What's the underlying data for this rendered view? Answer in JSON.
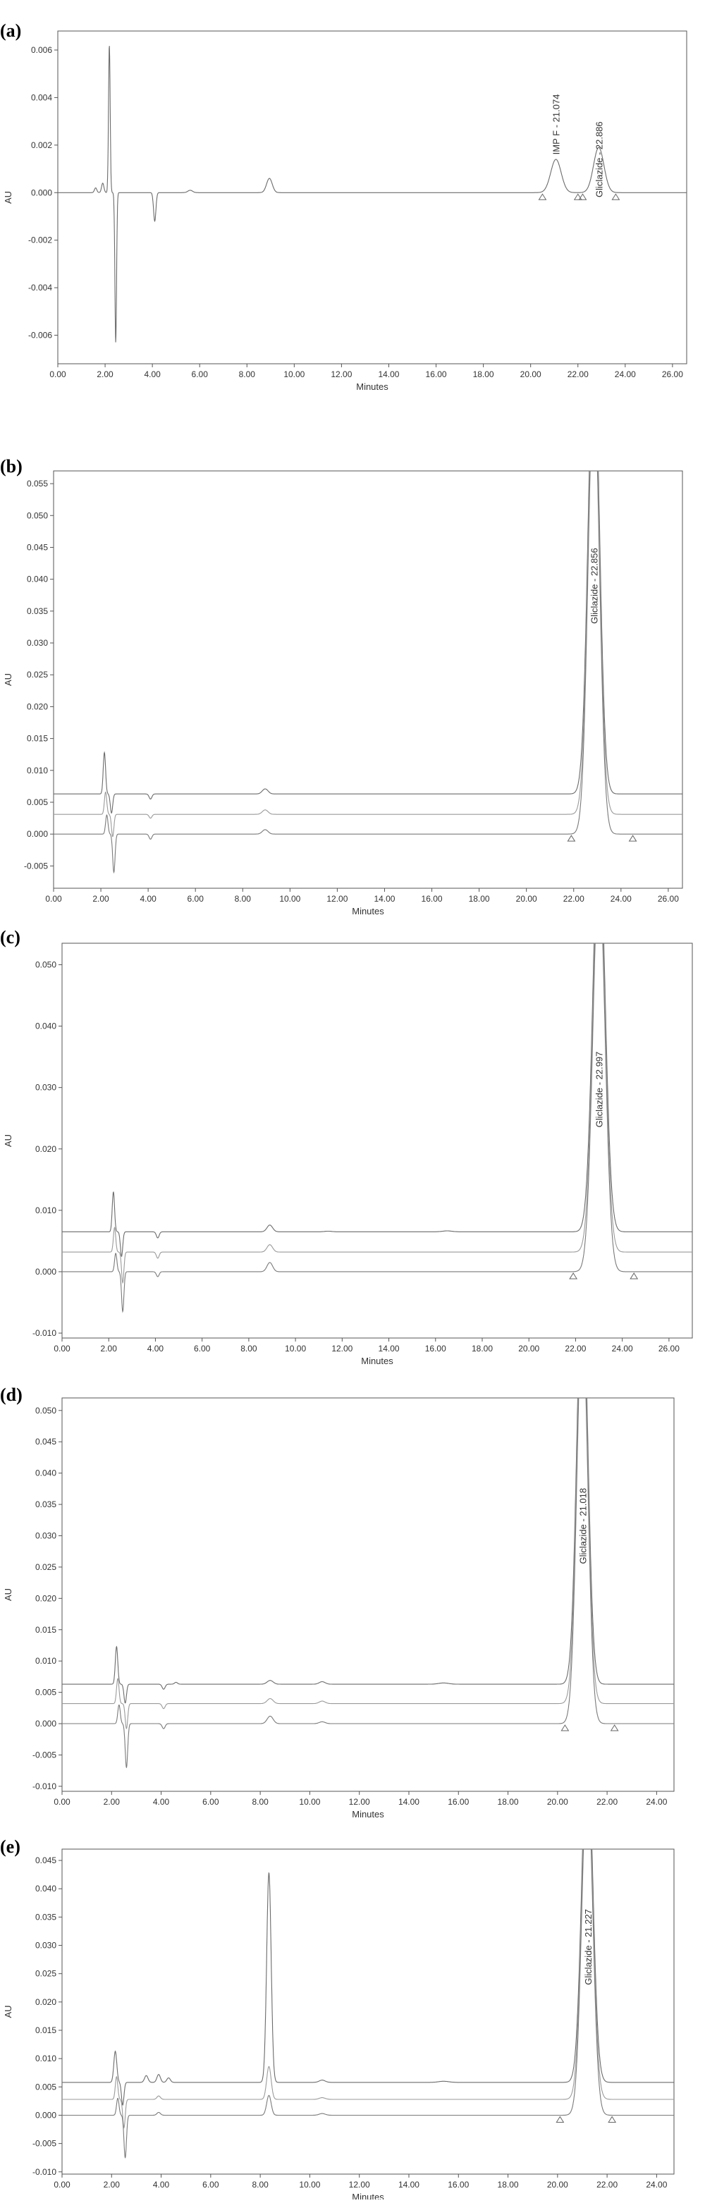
{
  "chart_data": [
    {
      "panel_label": "(a)",
      "type": "line",
      "xlabel": "Minutes",
      "ylabel": "AU",
      "xlim": [
        0,
        26.6
      ],
      "ylim": [
        -0.0072,
        0.0068
      ],
      "x_ticks": [
        "0.00",
        "2.00",
        "4.00",
        "6.00",
        "8.00",
        "10.00",
        "12.00",
        "14.00",
        "16.00",
        "18.00",
        "20.00",
        "22.00",
        "24.00",
        "26.00"
      ],
      "y_ticks": [
        {
          "value": 0.006,
          "label": "0.006"
        },
        {
          "value": 0.004,
          "label": "0.004"
        },
        {
          "value": 0.002,
          "label": "0.002"
        },
        {
          "value": 0.0,
          "label": "0.000"
        },
        {
          "value": -0.002,
          "label": "-0.002"
        },
        {
          "value": -0.004,
          "label": "-0.004"
        },
        {
          "value": -0.006,
          "label": "-0.006"
        }
      ],
      "series": [
        {
          "offset": 0.0,
          "features": [
            {
              "t": 1.6,
              "h": 0.0002,
              "w": 0.05
            },
            {
              "t": 1.9,
              "h": 0.0004,
              "w": 0.05
            },
            {
              "t": 2.18,
              "h": 0.0062,
              "w": 0.035
            },
            {
              "t": 2.45,
              "h": -0.0063,
              "w": 0.035
            },
            {
              "t": 4.1,
              "h": -0.0012,
              "w": 0.05
            },
            {
              "t": 5.6,
              "h": 0.0001,
              "w": 0.1
            },
            {
              "t": 8.95,
              "h": 0.0006,
              "w": 0.12
            },
            {
              "t": 21.07,
              "h": 0.0014,
              "w": 0.22
            },
            {
              "t": 22.88,
              "h": 0.0019,
              "w": 0.22
            }
          ]
        }
      ],
      "markers": [
        20.5,
        22.0,
        22.2,
        23.6
      ],
      "peak_labels": [
        {
          "text": "IMP F - 21.074",
          "t": 21.074,
          "value": 0.0016
        },
        {
          "text": "Gliclazide - 22.886",
          "t": 22.886,
          "value": -0.0002
        }
      ]
    },
    {
      "panel_label": "(b)",
      "type": "line",
      "xlabel": "Minutes",
      "ylabel": "AU",
      "xlim": [
        0,
        26.6
      ],
      "ylim": [
        -0.0085,
        0.057
      ],
      "x_ticks": [
        "0.00",
        "2.00",
        "4.00",
        "6.00",
        "8.00",
        "10.00",
        "12.00",
        "14.00",
        "16.00",
        "18.00",
        "20.00",
        "22.00",
        "24.00",
        "26.00"
      ],
      "y_ticks": [
        {
          "value": 0.055,
          "label": "0.055"
        },
        {
          "value": 0.05,
          "label": "0.050"
        },
        {
          "value": 0.045,
          "label": "0.045"
        },
        {
          "value": 0.04,
          "label": "0.040"
        },
        {
          "value": 0.035,
          "label": "0.035"
        },
        {
          "value": 0.03,
          "label": "0.030"
        },
        {
          "value": 0.025,
          "label": "0.025"
        },
        {
          "value": 0.02,
          "label": "0.020"
        },
        {
          "value": 0.015,
          "label": "0.015"
        },
        {
          "value": 0.01,
          "label": "0.010"
        },
        {
          "value": 0.005,
          "label": "0.005"
        },
        {
          "value": 0.0,
          "label": "0.000"
        },
        {
          "value": -0.005,
          "label": "-0.005"
        }
      ],
      "series": [
        {
          "offset": 0.0063,
          "features": [
            {
              "t": 2.15,
              "h": 0.0065,
              "w": 0.05
            },
            {
              "t": 2.45,
              "h": -0.003,
              "w": 0.05
            },
            {
              "t": 4.1,
              "h": -0.0008,
              "w": 0.06
            },
            {
              "t": 8.95,
              "h": 0.0008,
              "w": 0.12
            },
            {
              "t": 22.85,
              "h": 0.07,
              "w": 0.24
            }
          ]
        },
        {
          "offset": 0.0031,
          "features": [
            {
              "t": 2.2,
              "h": 0.0035,
              "w": 0.05
            },
            {
              "t": 2.5,
              "h": -0.0035,
              "w": 0.05
            },
            {
              "t": 4.1,
              "h": -0.0006,
              "w": 0.06
            },
            {
              "t": 8.95,
              "h": 0.0007,
              "w": 0.12
            },
            {
              "t": 22.85,
              "h": 0.07,
              "w": 0.24
            }
          ]
        },
        {
          "offset": 0.0,
          "features": [
            {
              "t": 2.25,
              "h": 0.003,
              "w": 0.05
            },
            {
              "t": 2.55,
              "h": -0.006,
              "w": 0.05
            },
            {
              "t": 4.1,
              "h": -0.0008,
              "w": 0.06
            },
            {
              "t": 8.95,
              "h": 0.0007,
              "w": 0.12
            },
            {
              "t": 22.85,
              "h": 0.07,
              "w": 0.24
            }
          ]
        }
      ],
      "markers": [
        21.9,
        24.5
      ],
      "peak_labels": [
        {
          "text": "Gliclazide - 22.856",
          "t": 22.856,
          "value": 0.033
        }
      ]
    },
    {
      "panel_label": "(c)",
      "type": "line",
      "xlabel": "Minutes",
      "ylabel": "AU",
      "xlim": [
        0,
        27.0
      ],
      "ylim": [
        -0.0108,
        0.0535
      ],
      "x_ticks": [
        "0.00",
        "2.00",
        "4.00",
        "6.00",
        "8.00",
        "10.00",
        "12.00",
        "14.00",
        "16.00",
        "18.00",
        "20.00",
        "22.00",
        "24.00",
        "26.00"
      ],
      "y_ticks": [
        {
          "value": 0.05,
          "label": "0.050"
        },
        {
          "value": 0.04,
          "label": "0.040"
        },
        {
          "value": 0.03,
          "label": "0.030"
        },
        {
          "value": 0.02,
          "label": "0.020"
        },
        {
          "value": 0.01,
          "label": "0.010"
        },
        {
          "value": 0.0,
          "label": "0.000"
        },
        {
          "value": -0.01,
          "label": "-0.010"
        }
      ],
      "series": [
        {
          "offset": 0.0065,
          "features": [
            {
              "t": 2.2,
              "h": 0.0065,
              "w": 0.05
            },
            {
              "t": 2.55,
              "h": -0.004,
              "w": 0.05
            },
            {
              "t": 4.1,
              "h": -0.001,
              "w": 0.06
            },
            {
              "t": 8.9,
              "h": 0.0011,
              "w": 0.12
            },
            {
              "t": 11.4,
              "h": 0.0001,
              "w": 0.15
            },
            {
              "t": 16.5,
              "h": 0.00015,
              "w": 0.2
            },
            {
              "t": 23.0,
              "h": 0.065,
              "w": 0.26
            }
          ]
        },
        {
          "offset": 0.0032,
          "features": [
            {
              "t": 2.25,
              "h": 0.004,
              "w": 0.05
            },
            {
              "t": 2.6,
              "h": -0.005,
              "w": 0.05
            },
            {
              "t": 4.1,
              "h": -0.001,
              "w": 0.06
            },
            {
              "t": 8.9,
              "h": 0.0012,
              "w": 0.12
            },
            {
              "t": 23.0,
              "h": 0.065,
              "w": 0.26
            }
          ]
        },
        {
          "offset": 0.0,
          "features": [
            {
              "t": 2.3,
              "h": 0.003,
              "w": 0.05
            },
            {
              "t": 2.6,
              "h": -0.0065,
              "w": 0.05
            },
            {
              "t": 4.1,
              "h": -0.0008,
              "w": 0.06
            },
            {
              "t": 8.9,
              "h": 0.0015,
              "w": 0.12
            },
            {
              "t": 23.0,
              "h": 0.065,
              "w": 0.26
            }
          ]
        }
      ],
      "markers": [
        21.9,
        24.5
      ],
      "peak_labels": [
        {
          "text": "Gliclazide - 22.997",
          "t": 22.997,
          "value": 0.0235
        }
      ]
    },
    {
      "panel_label": "(d)",
      "type": "line",
      "xlabel": "Minutes",
      "ylabel": "AU",
      "xlim": [
        0,
        24.7
      ],
      "ylim": [
        -0.0108,
        0.052
      ],
      "x_ticks": [
        "0.00",
        "2.00",
        "4.00",
        "6.00",
        "8.00",
        "10.00",
        "12.00",
        "14.00",
        "16.00",
        "18.00",
        "20.00",
        "22.00",
        "24.00"
      ],
      "y_ticks": [
        {
          "value": 0.05,
          "label": "0.050"
        },
        {
          "value": 0.045,
          "label": "0.045"
        },
        {
          "value": 0.04,
          "label": "0.040"
        },
        {
          "value": 0.035,
          "label": "0.035"
        },
        {
          "value": 0.03,
          "label": "0.030"
        },
        {
          "value": 0.025,
          "label": "0.025"
        },
        {
          "value": 0.02,
          "label": "0.020"
        },
        {
          "value": 0.015,
          "label": "0.015"
        },
        {
          "value": 0.01,
          "label": "0.010"
        },
        {
          "value": 0.005,
          "label": "0.005"
        },
        {
          "value": 0.0,
          "label": "0.000"
        },
        {
          "value": -0.005,
          "label": "-0.005"
        },
        {
          "value": -0.01,
          "label": "-0.010"
        }
      ],
      "series": [
        {
          "offset": 0.0063,
          "features": [
            {
              "t": 2.2,
              "h": 0.006,
              "w": 0.05
            },
            {
              "t": 2.55,
              "h": -0.003,
              "w": 0.05
            },
            {
              "t": 4.1,
              "h": -0.0008,
              "w": 0.06
            },
            {
              "t": 4.6,
              "h": 0.0003,
              "w": 0.06
            },
            {
              "t": 8.4,
              "h": 0.0006,
              "w": 0.12
            },
            {
              "t": 10.5,
              "h": 0.0004,
              "w": 0.12
            },
            {
              "t": 15.4,
              "h": 0.0002,
              "w": 0.2
            },
            {
              "t": 21.0,
              "h": 0.065,
              "w": 0.22
            }
          ]
        },
        {
          "offset": 0.0032,
          "features": [
            {
              "t": 2.25,
              "h": 0.004,
              "w": 0.05
            },
            {
              "t": 2.6,
              "h": -0.004,
              "w": 0.05
            },
            {
              "t": 4.1,
              "h": -0.0008,
              "w": 0.06
            },
            {
              "t": 8.4,
              "h": 0.0008,
              "w": 0.12
            },
            {
              "t": 10.5,
              "h": 0.0004,
              "w": 0.12
            },
            {
              "t": 21.0,
              "h": 0.065,
              "w": 0.22
            }
          ]
        },
        {
          "offset": 0.0,
          "features": [
            {
              "t": 2.3,
              "h": 0.003,
              "w": 0.05
            },
            {
              "t": 2.6,
              "h": -0.007,
              "w": 0.05
            },
            {
              "t": 4.1,
              "h": -0.0008,
              "w": 0.06
            },
            {
              "t": 8.4,
              "h": 0.0012,
              "w": 0.12
            },
            {
              "t": 10.5,
              "h": 0.0003,
              "w": 0.12
            },
            {
              "t": 21.0,
              "h": 0.065,
              "w": 0.22
            }
          ]
        }
      ],
      "markers": [
        20.3,
        22.3
      ],
      "peak_labels": [
        {
          "text": "Gliclazide - 21.018",
          "t": 21.018,
          "value": 0.0255
        }
      ]
    },
    {
      "panel_label": "(e)",
      "type": "line",
      "xlabel": "Minutes",
      "ylabel": "AU",
      "xlim": [
        0,
        24.7
      ],
      "ylim": [
        -0.0104,
        0.047
      ],
      "x_ticks": [
        "0.00",
        "2.00",
        "4.00",
        "6.00",
        "8.00",
        "10.00",
        "12.00",
        "14.00",
        "16.00",
        "18.00",
        "20.00",
        "22.00",
        "24.00"
      ],
      "y_ticks": [
        {
          "value": 0.045,
          "label": "0.045"
        },
        {
          "value": 0.04,
          "label": "0.040"
        },
        {
          "value": 0.035,
          "label": "0.035"
        },
        {
          "value": 0.03,
          "label": "0.030"
        },
        {
          "value": 0.025,
          "label": "0.025"
        },
        {
          "value": 0.02,
          "label": "0.020"
        },
        {
          "value": 0.015,
          "label": "0.015"
        },
        {
          "value": 0.01,
          "label": "0.010"
        },
        {
          "value": 0.005,
          "label": "0.005"
        },
        {
          "value": 0.0,
          "label": "0.000"
        },
        {
          "value": -0.005,
          "label": "-0.005"
        },
        {
          "value": -0.01,
          "label": "-0.010"
        }
      ],
      "series": [
        {
          "offset": 0.0058,
          "features": [
            {
              "t": 2.15,
              "h": 0.0055,
              "w": 0.06
            },
            {
              "t": 2.45,
              "h": -0.004,
              "w": 0.05
            },
            {
              "t": 3.4,
              "h": 0.0012,
              "w": 0.07
            },
            {
              "t": 3.9,
              "h": 0.0014,
              "w": 0.07
            },
            {
              "t": 4.3,
              "h": 0.0008,
              "w": 0.07
            },
            {
              "t": 8.35,
              "h": 0.037,
              "w": 0.09
            },
            {
              "t": 10.5,
              "h": 0.0004,
              "w": 0.12
            },
            {
              "t": 15.4,
              "h": 0.0002,
              "w": 0.2
            },
            {
              "t": 21.2,
              "h": 0.06,
              "w": 0.22
            }
          ]
        },
        {
          "offset": 0.0028,
          "features": [
            {
              "t": 2.2,
              "h": 0.004,
              "w": 0.05
            },
            {
              "t": 2.5,
              "h": -0.005,
              "w": 0.05
            },
            {
              "t": 3.9,
              "h": 0.0006,
              "w": 0.07
            },
            {
              "t": 8.35,
              "h": 0.0058,
              "w": 0.09
            },
            {
              "t": 10.5,
              "h": 0.0003,
              "w": 0.12
            },
            {
              "t": 21.2,
              "h": 0.06,
              "w": 0.22
            }
          ]
        },
        {
          "offset": 0.0,
          "features": [
            {
              "t": 2.25,
              "h": 0.003,
              "w": 0.05
            },
            {
              "t": 2.55,
              "h": -0.0075,
              "w": 0.05
            },
            {
              "t": 3.9,
              "h": 0.0005,
              "w": 0.07
            },
            {
              "t": 8.35,
              "h": 0.0035,
              "w": 0.09
            },
            {
              "t": 10.5,
              "h": 0.0003,
              "w": 0.12
            },
            {
              "t": 21.2,
              "h": 0.06,
              "w": 0.22
            }
          ]
        }
      ],
      "markers": [
        20.1,
        22.2
      ],
      "peak_labels": [
        {
          "text": "Gliclazide - 21.227",
          "t": 21.227,
          "value": 0.023
        }
      ]
    }
  ]
}
